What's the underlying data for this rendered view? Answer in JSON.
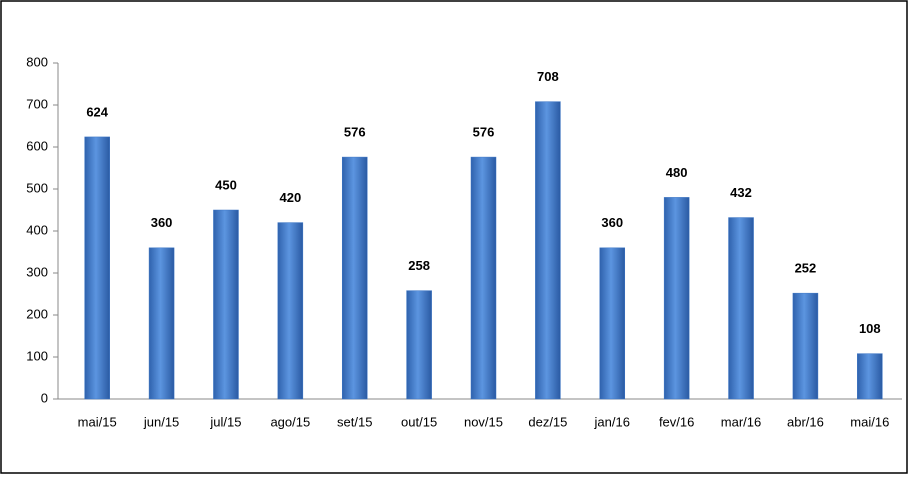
{
  "chart_data": {
    "type": "bar",
    "categories": [
      "mai/15",
      "jun/15",
      "jul/15",
      "ago/15",
      "set/15",
      "out/15",
      "nov/15",
      "dez/15",
      "jan/16",
      "fev/16",
      "mar/16",
      "abr/16",
      "mai/16"
    ],
    "values": [
      624,
      360,
      450,
      420,
      576,
      258,
      576,
      708,
      360,
      480,
      432,
      252,
      108
    ],
    "color": "#3a74c4",
    "ylim": [
      0,
      800
    ],
    "yticks": [
      0,
      100,
      200,
      300,
      400,
      500,
      600,
      700,
      800
    ],
    "grid": false
  }
}
